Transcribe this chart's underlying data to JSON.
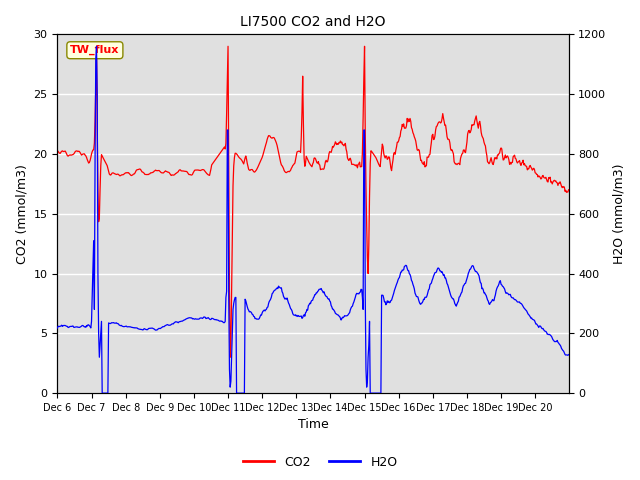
{
  "title": "LI7500 CO2 and H2O",
  "xlabel": "Time",
  "ylabel_left": "CO2 (mmol/m3)",
  "ylabel_right": "H2O (mmol/m3)",
  "ylim_left": [
    0,
    30
  ],
  "ylim_right": [
    0,
    1200
  ],
  "legend_labels": [
    "CO2",
    "H2O"
  ],
  "legend_colors": [
    "red",
    "blue"
  ],
  "site_label": "TW_flux",
  "bg_color": "#e0e0e0",
  "grid_color": "white",
  "yticks_left": [
    0,
    5,
    10,
    15,
    20,
    25,
    30
  ],
  "yticks_right": [
    0,
    200,
    400,
    600,
    800,
    1000,
    1200
  ]
}
